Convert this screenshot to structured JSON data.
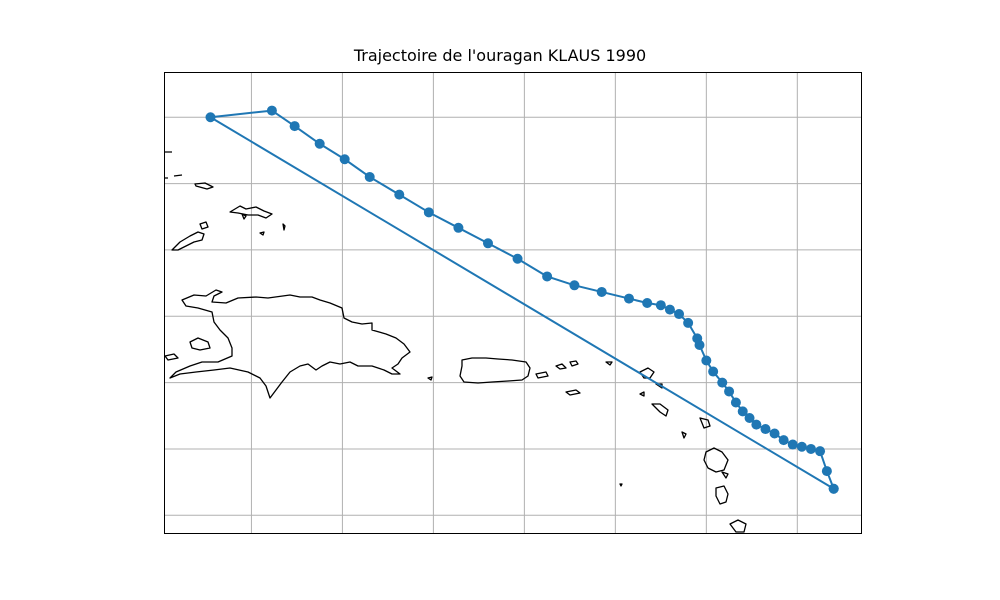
{
  "title": "Trajectoire de l'ouragan KLAUS 1990",
  "colors": {
    "track": "#1f77b4",
    "coast": "#000000",
    "grid": "#b0b0b0",
    "frame": "#000000"
  },
  "chart_data": {
    "type": "map-track",
    "title": "Trajectoire de l'ouragan KLAUS 1990",
    "xlim": [
      -74.9,
      -59.6
    ],
    "ylim": [
      12.6,
      23.0
    ],
    "grid": true,
    "grid_lon": [
      -73.0,
      -71.0,
      -69.0,
      -67.0,
      -65.0,
      -63.0,
      -61.0
    ],
    "grid_lat": [
      13.0,
      14.5,
      16.0,
      17.5,
      19.0,
      20.5,
      22.0
    ],
    "storm": "KLAUS",
    "year": 1990,
    "track": [
      {
        "lon": -60.2,
        "lat": 13.6
      },
      {
        "lon": -60.35,
        "lat": 14.0
      },
      {
        "lon": -60.5,
        "lat": 14.45
      },
      {
        "lon": -60.7,
        "lat": 14.5
      },
      {
        "lon": -60.9,
        "lat": 14.55
      },
      {
        "lon": -61.1,
        "lat": 14.6
      },
      {
        "lon": -61.3,
        "lat": 14.7
      },
      {
        "lon": -61.5,
        "lat": 14.85
      },
      {
        "lon": -61.7,
        "lat": 14.95
      },
      {
        "lon": -61.9,
        "lat": 15.05
      },
      {
        "lon": -62.05,
        "lat": 15.2
      },
      {
        "lon": -62.2,
        "lat": 15.35
      },
      {
        "lon": -62.35,
        "lat": 15.55
      },
      {
        "lon": -62.5,
        "lat": 15.8
      },
      {
        "lon": -62.65,
        "lat": 16.0
      },
      {
        "lon": -62.85,
        "lat": 16.25
      },
      {
        "lon": -63.0,
        "lat": 16.5
      },
      {
        "lon": -63.15,
        "lat": 16.85
      },
      {
        "lon": -63.2,
        "lat": 17.0
      },
      {
        "lon": -63.4,
        "lat": 17.35
      },
      {
        "lon": -63.6,
        "lat": 17.55
      },
      {
        "lon": -63.8,
        "lat": 17.65
      },
      {
        "lon": -64.0,
        "lat": 17.75
      },
      {
        "lon": -64.3,
        "lat": 17.8
      },
      {
        "lon": -64.7,
        "lat": 17.9
      },
      {
        "lon": -65.3,
        "lat": 18.05
      },
      {
        "lon": -65.9,
        "lat": 18.2
      },
      {
        "lon": -66.5,
        "lat": 18.4
      },
      {
        "lon": -67.15,
        "lat": 18.8
      },
      {
        "lon": -67.8,
        "lat": 19.15
      },
      {
        "lon": -68.45,
        "lat": 19.5
      },
      {
        "lon": -69.1,
        "lat": 19.85
      },
      {
        "lon": -69.75,
        "lat": 20.25
      },
      {
        "lon": -70.4,
        "lat": 20.65
      },
      {
        "lon": -70.95,
        "lat": 21.05
      },
      {
        "lon": -71.5,
        "lat": 21.4
      },
      {
        "lon": -72.05,
        "lat": 21.8
      },
      {
        "lon": -72.55,
        "lat": 22.15
      },
      {
        "lon": -73.9,
        "lat": 22.0
      },
      {
        "lon": -60.2,
        "lat": 13.6
      }
    ]
  }
}
